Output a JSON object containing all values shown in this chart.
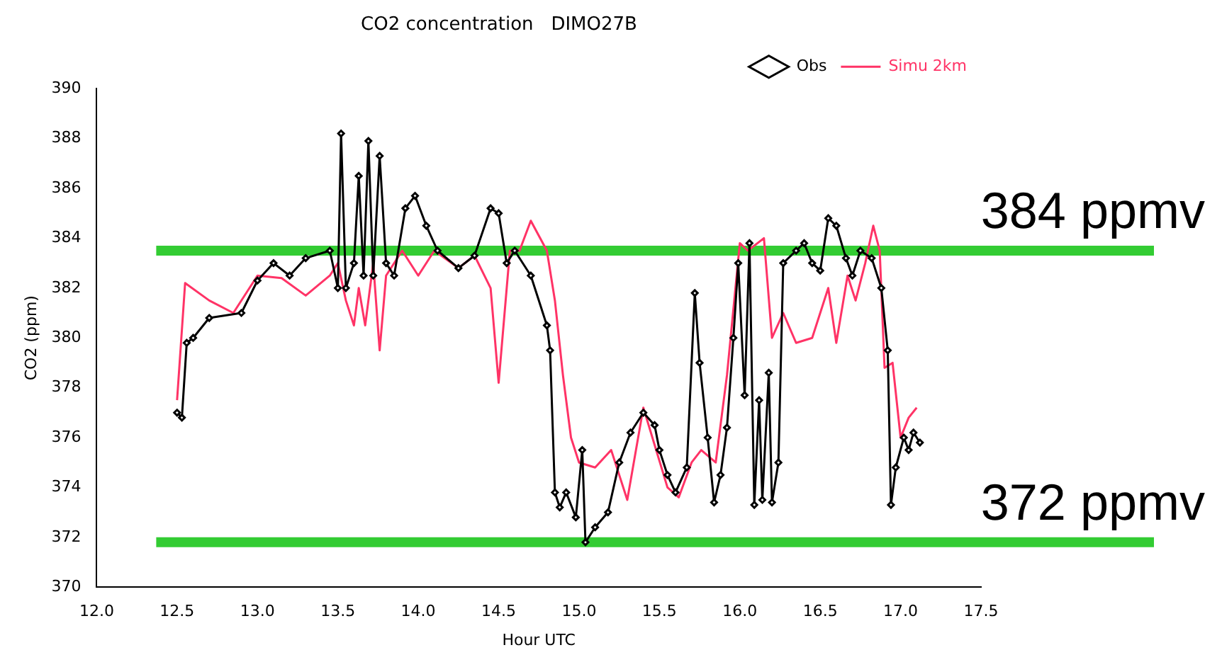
{
  "chart_data": {
    "type": "line",
    "title": "CO2 concentration   DIMO27B",
    "xlabel": "Hour UTC",
    "ylabel": "CO2 (ppm)",
    "xlim": [
      12.0,
      17.5
    ],
    "xticks": [
      {
        "value": 12,
        "label": "12.0"
      },
      {
        "value": 12.5,
        "label": "12.5"
      },
      {
        "value": 13,
        "label": "13.0"
      },
      {
        "value": 13.5,
        "label": "13.5"
      },
      {
        "value": 14,
        "label": "14.0"
      },
      {
        "value": 14.5,
        "label": "14.5"
      },
      {
        "value": 15,
        "label": "15.0"
      },
      {
        "value": 15.5,
        "label": "15.5"
      },
      {
        "value": 16,
        "label": "16.0"
      },
      {
        "value": 16.5,
        "label": "16.5"
      },
      {
        "value": 17,
        "label": "17.0"
      },
      {
        "value": 17.5,
        "label": "17.5"
      }
    ],
    "ylim": [
      370,
      390
    ],
    "yticks": [
      370,
      372,
      374,
      376,
      378,
      380,
      382,
      384,
      386,
      388,
      390
    ],
    "grid": false,
    "legend": "top right",
    "series": [
      {
        "name": "Obs",
        "color": "#000000",
        "marker": "diamond",
        "x": [
          12.5,
          12.53,
          12.56,
          12.6,
          12.7,
          12.9,
          13.0,
          13.1,
          13.2,
          13.3,
          13.45,
          13.5,
          13.52,
          13.55,
          13.6,
          13.63,
          13.66,
          13.69,
          13.72,
          13.76,
          13.8,
          13.85,
          13.92,
          13.98,
          14.05,
          14.12,
          14.25,
          14.35,
          14.45,
          14.5,
          14.55,
          14.6,
          14.7,
          14.8,
          14.82,
          14.85,
          14.88,
          14.92,
          14.98,
          15.02,
          15.04,
          15.1,
          15.18,
          15.25,
          15.32,
          15.4,
          15.47,
          15.5,
          15.55,
          15.6,
          15.67,
          15.72,
          15.75,
          15.8,
          15.84,
          15.88,
          15.92,
          15.96,
          15.99,
          16.03,
          16.06,
          16.09,
          16.12,
          16.14,
          16.18,
          16.2,
          16.24,
          16.27,
          16.35,
          16.4,
          16.45,
          16.5,
          16.55,
          16.6,
          16.66,
          16.7,
          16.75,
          16.82,
          16.88,
          16.92,
          16.94,
          16.97,
          17.02,
          17.05,
          17.08,
          17.12
        ],
        "values": [
          377,
          376.8,
          379.8,
          380,
          380.8,
          381,
          382.3,
          383,
          382.5,
          383.2,
          383.5,
          382,
          388.2,
          382,
          383,
          386.5,
          382.5,
          387.9,
          382.5,
          387.3,
          383,
          382.5,
          385.2,
          385.7,
          384.5,
          383.5,
          382.8,
          383.3,
          385.2,
          385,
          383,
          383.5,
          382.5,
          380.5,
          379.5,
          373.8,
          373.2,
          373.8,
          372.8,
          375.5,
          371.8,
          372.4,
          373,
          375,
          376.2,
          377,
          376.5,
          375.5,
          374.5,
          373.8,
          374.8,
          381.8,
          379,
          376,
          373.4,
          374.5,
          376.4,
          380,
          383,
          377.7,
          383.8,
          373.3,
          377.5,
          373.5,
          378.6,
          373.4,
          375,
          383,
          383.5,
          383.8,
          383,
          382.7,
          384.8,
          384.5,
          383.2,
          382.5,
          383.5,
          383.2,
          382,
          379.5,
          373.3,
          374.8,
          376,
          375.5,
          376.2,
          375.8
        ]
      },
      {
        "name": "Simu 2km",
        "color": "#ff3366",
        "marker": "none",
        "x": [
          12.5,
          12.55,
          12.7,
          12.85,
          13.0,
          13.15,
          13.3,
          13.45,
          13.5,
          13.55,
          13.6,
          13.63,
          13.67,
          13.72,
          13.76,
          13.8,
          13.9,
          14.0,
          14.1,
          14.25,
          14.35,
          14.45,
          14.5,
          14.57,
          14.63,
          14.7,
          14.8,
          14.85,
          14.9,
          14.95,
          15.0,
          15.1,
          15.2,
          15.3,
          15.4,
          15.55,
          15.62,
          15.7,
          15.76,
          15.85,
          15.92,
          16.0,
          16.05,
          16.15,
          16.2,
          16.27,
          16.35,
          16.45,
          16.55,
          16.6,
          16.67,
          16.72,
          16.78,
          16.83,
          16.87,
          16.9,
          16.95,
          17.0,
          17.05,
          17.1
        ],
        "values": [
          377.5,
          382.2,
          381.5,
          381,
          382.5,
          382.4,
          381.7,
          382.5,
          383,
          381.5,
          380.5,
          382,
          380.5,
          383,
          379.5,
          382.5,
          383.5,
          382.5,
          383.5,
          382.8,
          383.3,
          382,
          378.2,
          383.5,
          383.5,
          384.7,
          383.5,
          381.5,
          378.5,
          376,
          375,
          374.8,
          375.5,
          373.5,
          377.2,
          374,
          373.6,
          375,
          375.5,
          375,
          378.5,
          383.8,
          383.5,
          384,
          380,
          381,
          379.8,
          380,
          382,
          379.8,
          382.5,
          381.5,
          383,
          384.5,
          383.5,
          378.8,
          379,
          376,
          376.8,
          377.2
        ]
      }
    ],
    "ref_lines": [
      {
        "axis": "y",
        "value": 383.5,
        "label": "384 ppmv",
        "color": "#33cc33"
      },
      {
        "axis": "y",
        "value": 371.8,
        "label": "372 ppmv",
        "color": "#33cc33"
      }
    ]
  }
}
